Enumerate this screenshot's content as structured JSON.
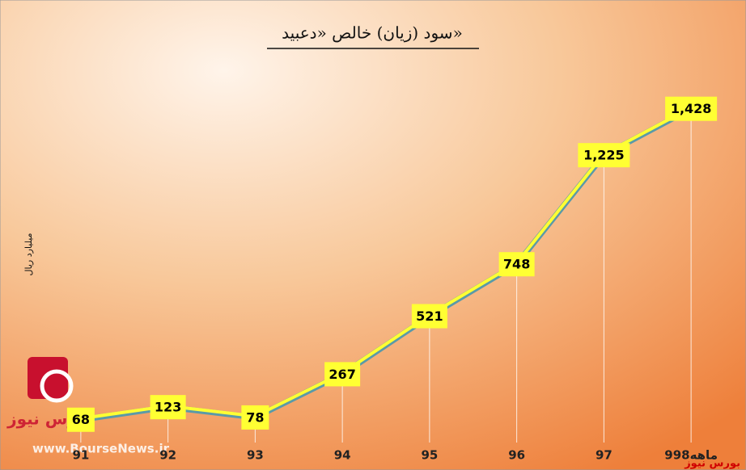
{
  "chart_data": {
    "type": "line",
    "title": "سود (زیان) خالص «دعبید»",
    "y_label": "میلیارد ریال",
    "categories": [
      "91",
      "92",
      "93",
      "94",
      "95",
      "96",
      "97",
      "9ماهه98"
    ],
    "values": [
      68,
      123,
      78,
      267,
      521,
      748,
      1225,
      1428
    ],
    "value_labels": [
      "68",
      "123",
      "78",
      "267",
      "521",
      "748",
      "1,225",
      "1,428"
    ],
    "color": "#ffff33",
    "ylim": [
      0,
      1600
    ]
  },
  "watermark": {
    "brand": "بورس نیوز",
    "url": "www.BourseNews.ir"
  }
}
